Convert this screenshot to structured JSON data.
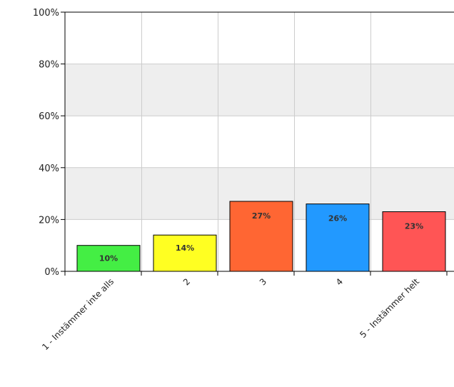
{
  "chart_data": {
    "type": "bar",
    "categories": [
      "1 - Instämmer inte alls",
      "2",
      "3",
      "4",
      "5 - Instämmer helt"
    ],
    "values": [
      10,
      14,
      27,
      26,
      23
    ],
    "data_labels": [
      "10%",
      "14%",
      "27%",
      "26%",
      "23%"
    ],
    "bar_colors": [
      "#44ee44",
      "#ffff22",
      "#ff6633",
      "#2299ff",
      "#ff5555"
    ],
    "ylim": [
      0,
      100
    ],
    "y_ticks": [
      0,
      20,
      40,
      60,
      80,
      100
    ],
    "y_tick_labels": [
      "0%",
      "20%",
      "40%",
      "60%",
      "80%",
      "100%"
    ],
    "grid": true,
    "legend": "none"
  }
}
